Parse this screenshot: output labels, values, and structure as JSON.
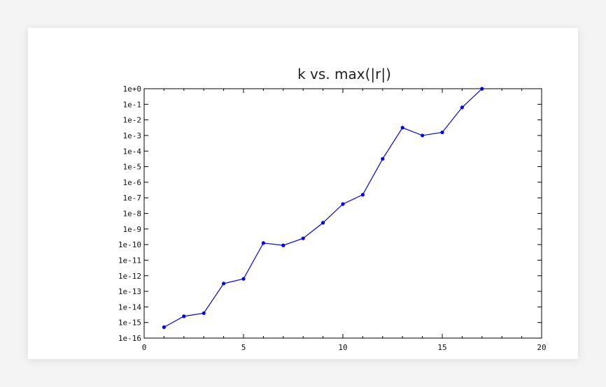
{
  "chart_data": {
    "type": "line",
    "title": "k vs. max(|r|)",
    "xlabel": "",
    "ylabel": "",
    "xlim": [
      0,
      20
    ],
    "ylim_log10": [
      -16,
      0
    ],
    "yscale": "log",
    "grid": false,
    "x_ticks": [
      0,
      5,
      10,
      15,
      20
    ],
    "x_tick_labels": [
      "0",
      "5",
      "10",
      "15",
      "20"
    ],
    "y_ticks_log10": [
      0,
      -1,
      -2,
      -3,
      -4,
      -5,
      -6,
      -7,
      -8,
      -9,
      -10,
      -11,
      -12,
      -13,
      -14,
      -15,
      -16
    ],
    "y_tick_labels": [
      "1e+0",
      "1e-1",
      "1e-2",
      "1e-3",
      "1e-4",
      "1e-5",
      "1e-6",
      "1e-7",
      "1e-8",
      "1e-9",
      "1e-10",
      "1e-11",
      "1e-12",
      "1e-13",
      "1e-14",
      "1e-15",
      "1e-16"
    ],
    "series": [
      {
        "name": "max(|r|)",
        "color": "#0000ff",
        "x": [
          1,
          2,
          3,
          4,
          5,
          6,
          7,
          8,
          9,
          10,
          11,
          12,
          13,
          14,
          15,
          16,
          17
        ],
        "log10_values": [
          -15.3,
          -14.6,
          -14.4,
          -12.5,
          -12.2,
          -9.9,
          -10.05,
          -9.6,
          -8.6,
          -7.4,
          -6.8,
          -4.5,
          -2.5,
          -3.0,
          -2.8,
          -1.2,
          0.0
        ]
      }
    ]
  }
}
